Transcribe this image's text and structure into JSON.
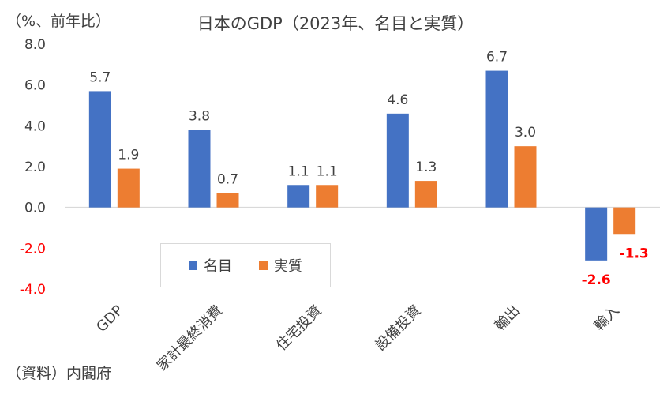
{
  "chart_data": {
    "type": "bar",
    "title": "日本のGDP（2023年、名目と実質）",
    "ylabel": "（%、前年比）",
    "source": "（資料）内閣府",
    "categories": [
      "GDP",
      "家計最終消費",
      "住宅投資",
      "設備投資",
      "輸出",
      "輸入"
    ],
    "series": [
      {
        "name": "名目",
        "color": "#4472C4",
        "values": [
          5.7,
          3.8,
          1.1,
          4.6,
          6.7,
          -2.6
        ],
        "labels": [
          "5.7",
          "3.8",
          "1.1",
          "4.6",
          "6.7",
          "-2.6"
        ]
      },
      {
        "name": "実質",
        "color": "#ED7D31",
        "values": [
          1.9,
          0.7,
          1.1,
          1.3,
          3.0,
          -1.3
        ],
        "labels": [
          "1.9",
          "0.7",
          "1.1",
          "1.3",
          "3.0",
          "-1.3"
        ]
      }
    ],
    "ylim": [
      -4.0,
      8.0
    ],
    "yticks": [
      8.0,
      6.0,
      4.0,
      2.0,
      0.0,
      -2.0,
      -4.0
    ],
    "ytick_labels": [
      "8.0",
      "6.0",
      "4.0",
      "2.0",
      "0.0",
      "-2.0",
      "-4.0"
    ],
    "grid": false,
    "legend": "bottom-left inside plot",
    "colors": {
      "text": "#404040",
      "negative": "#FF0000",
      "axis": "#D9D9D9"
    }
  }
}
